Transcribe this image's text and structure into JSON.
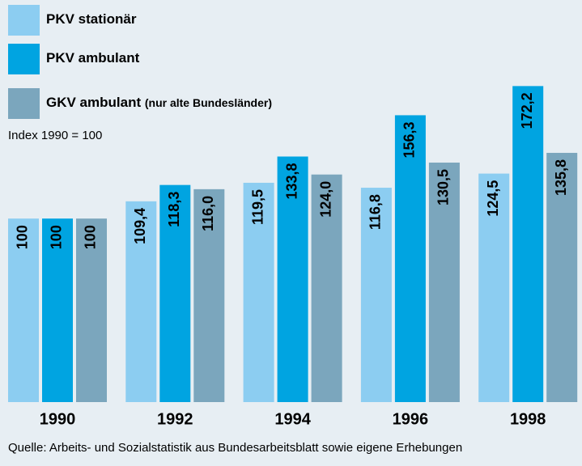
{
  "chart_data": {
    "type": "bar",
    "subtitle": "Index 1990 = 100",
    "source": "Quelle: Arbeits- und Sozialstatistik aus Bundesarbeitsblatt sowie eigene Erhebungen",
    "categories": [
      "1990",
      "1992",
      "1994",
      "1996",
      "1998"
    ],
    "ylim": [
      0,
      190
    ],
    "series": [
      {
        "name": "PKV stationär",
        "color": "#8ccdf1",
        "values": [
          100,
          109.4,
          119.5,
          116.8,
          124.5
        ],
        "value_labels": [
          "100",
          "109,4",
          "119,5",
          "116,8",
          "124,5"
        ]
      },
      {
        "name": "PKV ambulant",
        "color": "#00a4e1",
        "values": [
          100,
          118.3,
          133.8,
          156.3,
          172.2
        ],
        "value_labels": [
          "100",
          "118,3",
          "133,8",
          "156,3",
          "172,2"
        ]
      },
      {
        "name": "GKV ambulant",
        "note": "(nur alte Bundesländer)",
        "color": "#7ba6bd",
        "values": [
          100,
          116.0,
          124.0,
          130.5,
          135.8
        ],
        "value_labels": [
          "100",
          "116,0",
          "124,0",
          "130,5",
          "135,8"
        ]
      }
    ]
  }
}
